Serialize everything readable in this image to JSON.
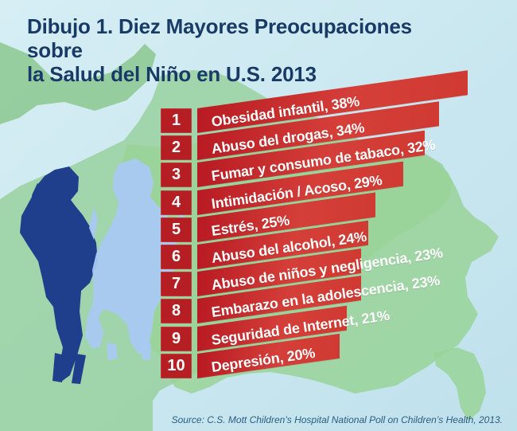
{
  "title": {
    "line1": "Dibujo 1. Diez Mayores Preocupaciones sobre",
    "line2": "la Salud del Niño en U.S. 2013"
  },
  "source": "Source: C.S. Mott Children’s Hospital National Poll on Children’s Health, 2013.",
  "chart_data": {
    "type": "bar",
    "title": "Dibujo 1. Diez Mayores Preocupaciones sobre la Salud del Niño en U.S. 2013",
    "categories": [
      "Obesidad infantil",
      "Abuso del drogas",
      "Fumar y consumo de tabaco",
      "Intimidación / Acoso",
      "Estrés",
      "Abuso del alcohol",
      "Abuso de niños y negligencia",
      "Embarazo en la adolescencia",
      "Seguridad de Internet",
      "Depresión"
    ],
    "values": [
      38,
      34,
      32,
      29,
      25,
      24,
      23,
      23,
      21,
      20
    ],
    "labels": [
      "Obesidad infantil, 38%",
      "Abuso del drogas, 34%",
      "Fumar y consumo de tabaco, 32%",
      "Intimidación / Acoso, 29%",
      "Estrés, 25%",
      "Abuso del alcohol, 24%",
      "Abuso de niños y negligencia, 23%",
      "Embarazo en la adolescencia, 23%",
      "Seguridad de Internet, 21%",
      "Depresión, 20%"
    ],
    "ranks": [
      "1",
      "2",
      "3",
      "4",
      "5",
      "6",
      "7",
      "8",
      "9",
      "10"
    ],
    "xlabel": "",
    "ylabel": "",
    "xlim": [
      0,
      38
    ]
  }
}
